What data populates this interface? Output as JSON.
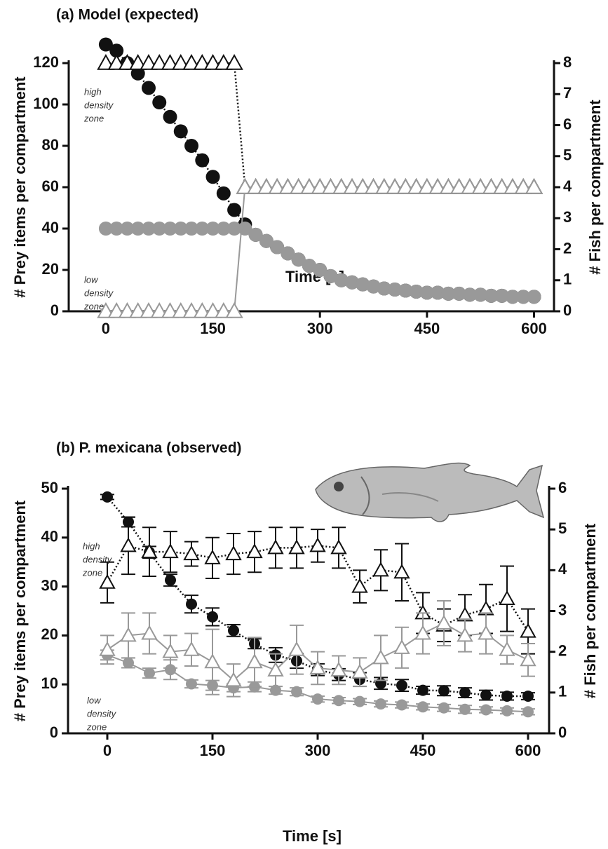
{
  "chart_data": [
    {
      "type": "dual-axis-scatter",
      "title": "(a) Model (expected)",
      "xlabel": "Time [s]",
      "ylabel": "# Prey items per compartment",
      "y2label": "# Fish per compartment",
      "annotations": [
        [
          "high",
          "density",
          "zone"
        ],
        [
          "low",
          "density",
          "zone"
        ]
      ],
      "xlim": [
        -52,
        628
      ],
      "xticks": [
        0,
        150,
        300,
        450,
        600
      ],
      "ylim": [
        0,
        120
      ],
      "yticks": [
        0,
        20,
        40,
        60,
        80,
        100,
        120
      ],
      "y2lim": [
        0,
        8
      ],
      "y2ticks": [
        0,
        1,
        2,
        3,
        4,
        5,
        6,
        7,
        8
      ],
      "x": [
        0,
        15,
        30,
        45,
        60,
        75,
        90,
        105,
        120,
        135,
        150,
        165,
        180,
        195,
        210,
        225,
        240,
        255,
        270,
        285,
        300,
        315,
        330,
        345,
        360,
        375,
        390,
        405,
        420,
        435,
        450,
        465,
        480,
        495,
        510,
        525,
        540,
        555,
        570,
        585,
        600
      ],
      "series": [
        {
          "axis": "y",
          "marker": "circle",
          "color": "#111111",
          "line": "dotted",
          "values": [
            129,
            126,
            120,
            115,
            108,
            101,
            94,
            87,
            80,
            73,
            65,
            57,
            49,
            42,
            37,
            34,
            31,
            28,
            25,
            22,
            20,
            17,
            15,
            14,
            13,
            12,
            11,
            10.5,
            10,
            9.5,
            9,
            9,
            8.5,
            8.5,
            8,
            8,
            7.5,
            7.5,
            7,
            7,
            7
          ]
        },
        {
          "axis": "y",
          "marker": "circle",
          "color": "#999999",
          "line": "solid",
          "values": [
            40,
            40,
            40,
            40,
            40,
            40,
            40,
            40,
            40,
            40,
            40,
            40,
            40,
            40,
            37,
            34,
            31,
            28,
            25,
            22,
            20,
            17,
            15,
            14,
            13,
            12,
            11,
            10.5,
            10,
            9.5,
            9,
            9,
            8.5,
            8.5,
            8,
            8,
            7.5,
            7.5,
            7,
            7,
            7
          ]
        },
        {
          "axis": "y2",
          "marker": "triangle",
          "color": "#111111",
          "line": "dotted",
          "values": [
            8,
            8,
            8,
            8,
            8,
            8,
            8,
            8,
            8,
            8,
            8,
            8,
            8,
            4,
            4,
            4,
            4,
            4,
            4,
            4,
            4,
            4,
            4,
            4,
            4,
            4,
            4,
            4,
            4,
            4,
            4,
            4,
            4,
            4,
            4,
            4,
            4,
            4,
            4,
            4,
            4
          ]
        },
        {
          "axis": "y2",
          "marker": "triangle",
          "color": "#999999",
          "line": "solid",
          "values": [
            0,
            0,
            0,
            0,
            0,
            0,
            0,
            0,
            0,
            0,
            0,
            0,
            0,
            4,
            4,
            4,
            4,
            4,
            4,
            4,
            4,
            4,
            4,
            4,
            4,
            4,
            4,
            4,
            4,
            4,
            4,
            4,
            4,
            4,
            4,
            4,
            4,
            4,
            4,
            4,
            4
          ]
        }
      ]
    },
    {
      "type": "dual-axis-scatter",
      "title": "(b) P. mexicana (observed)",
      "xlabel": "Time [s]",
      "ylabel": "# Prey items per compartment",
      "y2label": "# Fish per compartment",
      "annotations": [
        [
          "high",
          "density",
          "zone"
        ],
        [
          "low",
          "density",
          "zone"
        ]
      ],
      "xlim": [
        -56,
        630
      ],
      "xticks": [
        0,
        150,
        300,
        450,
        600
      ],
      "ylim": [
        0,
        50
      ],
      "yticks": [
        0,
        10,
        20,
        30,
        40,
        50
      ],
      "y2lim": [
        0,
        6
      ],
      "y2ticks": [
        0,
        1,
        2,
        3,
        4,
        5,
        6
      ],
      "x": [
        0,
        30,
        60,
        90,
        120,
        150,
        180,
        210,
        240,
        270,
        300,
        330,
        360,
        390,
        420,
        450,
        480,
        510,
        540,
        570,
        600
      ],
      "series": [
        {
          "axis": "y",
          "marker": "circle",
          "color": "#111111",
          "line": "dotted",
          "values": [
            48.3,
            43.2,
            37,
            31.3,
            26.4,
            23.8,
            21,
            18.3,
            16,
            14.8,
            13,
            12,
            11,
            10.2,
            9.8,
            8.8,
            8.7,
            8.3,
            7.8,
            7.6,
            7.6
          ],
          "errors": [
            0.5,
            1,
            1.2,
            1.2,
            1.8,
            1.8,
            1.2,
            1,
            1.5,
            1.5,
            1.2,
            1.2,
            1.4,
            1.2,
            1.2,
            0.8,
            1,
            1,
            1,
            0.8,
            0.7
          ]
        },
        {
          "axis": "y",
          "marker": "circle",
          "color": "#999999",
          "line": "solid",
          "values": [
            16,
            14.4,
            12.3,
            13,
            10.1,
            9.8,
            9.3,
            9.5,
            8.8,
            8.5,
            7,
            6.7,
            6.5,
            6,
            5.8,
            5.4,
            5.2,
            4.9,
            4.8,
            4.6,
            4.4
          ],
          "errors": [
            1,
            1,
            1,
            2,
            0.8,
            1,
            0.8,
            1,
            0.8,
            0.8,
            0.6,
            0.6,
            0.6,
            0.6,
            0.6,
            0.6,
            0.7,
            0.8,
            0.6,
            0.6,
            0.6
          ]
        },
        {
          "axis": "y2",
          "marker": "triangle",
          "color": "#111111",
          "line": "dotted",
          "values": [
            3.7,
            4.6,
            4.45,
            4.45,
            4.4,
            4.3,
            4.4,
            4.45,
            4.55,
            4.55,
            4.6,
            4.55,
            3.6,
            4.0,
            3.95,
            2.95,
            2.65,
            2.9,
            3.05,
            3.3,
            2.5
          ],
          "errors": [
            0.5,
            0.7,
            0.6,
            0.5,
            0.3,
            0.5,
            0.5,
            0.5,
            0.5,
            0.5,
            0.4,
            0.5,
            0.4,
            0.5,
            0.7,
            0.5,
            0.4,
            0.5,
            0.6,
            0.8,
            0.55
          ]
        },
        {
          "axis": "y2",
          "marker": "triangle",
          "color": "#999999",
          "line": "solid",
          "values": [
            2.05,
            2.4,
            2.45,
            2.0,
            2.05,
            1.75,
            1.3,
            1.75,
            1.55,
            2.05,
            1.6,
            1.55,
            1.5,
            1.85,
            2.1,
            2.45,
            2.7,
            2.4,
            2.45,
            2.05,
            1.8
          ],
          "errors": [
            0.35,
            0.55,
            0.5,
            0.4,
            0.4,
            0.8,
            0.4,
            0.6,
            0.4,
            0.6,
            0.4,
            0.35,
            0.35,
            0.55,
            0.5,
            0.5,
            0.55,
            0.4,
            0.5,
            0.35,
            0.4
          ]
        }
      ]
    }
  ]
}
